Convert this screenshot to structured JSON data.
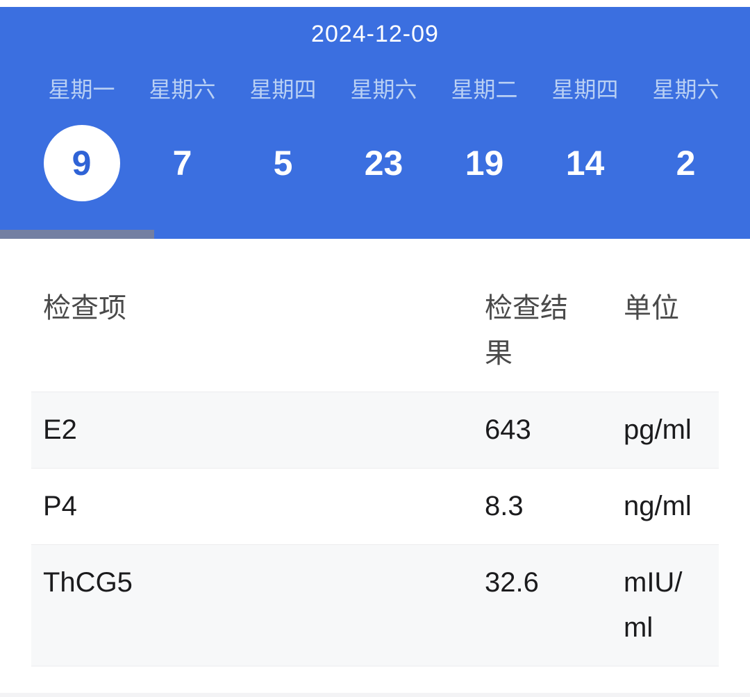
{
  "colors": {
    "accent_blue": "#3b6fe0",
    "weekday_text": "#b9d0f4",
    "selected_day_text": "#2f63d6",
    "row_alt_bg": "#f7f8f9",
    "header_text": "#4a4a4a",
    "value_text": "#1b1b1d"
  },
  "header": {
    "date": "2024-12-09",
    "days": [
      {
        "weekday": "星期一",
        "day": "9",
        "selected": true
      },
      {
        "weekday": "星期六",
        "day": "7",
        "selected": false
      },
      {
        "weekday": "星期四",
        "day": "5",
        "selected": false
      },
      {
        "weekday": "星期六",
        "day": "23",
        "selected": false
      },
      {
        "weekday": "星期二",
        "day": "19",
        "selected": false
      },
      {
        "weekday": "星期四",
        "day": "14",
        "selected": false
      },
      {
        "weekday": "星期六",
        "day": "2",
        "selected": false
      }
    ]
  },
  "table": {
    "columns": {
      "item": "检查项",
      "result": "检查结果",
      "unit": "单位"
    },
    "rows": [
      {
        "item": "E2",
        "result": "643",
        "unit": "pg/ml"
      },
      {
        "item": "P4",
        "result": "8.3",
        "unit": "ng/ml"
      },
      {
        "item": "ThCG5",
        "result": "32.6",
        "unit": "mIU/ml"
      }
    ]
  }
}
